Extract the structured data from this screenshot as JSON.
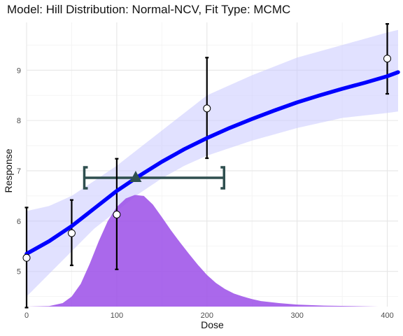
{
  "chart_data": {
    "type": "line",
    "title": "Model: Hill Distribution: Normal-NCV,  Fit Type: MCMC",
    "xlabel": "Dose",
    "ylabel": "Response",
    "xlim": [
      0,
      412
    ],
    "ylim": [
      4.3,
      9.95
    ],
    "x_ticks": [
      0,
      100,
      200,
      300,
      400
    ],
    "y_ticks": [
      5,
      6,
      7,
      8,
      9
    ],
    "grid": true,
    "colors": {
      "fit_line": "#0000ff",
      "confidence_band": "#c8c8ff",
      "density": "#9b4ee8",
      "bmd_interval": "#2f4f4f",
      "error_bar": "#000000"
    },
    "fit_curve": {
      "x": [
        0,
        25,
        50,
        75,
        100,
        125,
        150,
        175,
        200,
        225,
        250,
        275,
        300,
        325,
        350,
        375,
        400,
        412
      ],
      "y": [
        5.35,
        5.6,
        5.9,
        6.25,
        6.6,
        6.9,
        7.18,
        7.43,
        7.65,
        7.85,
        8.03,
        8.2,
        8.36,
        8.5,
        8.63,
        8.75,
        8.88,
        8.96
      ]
    },
    "confidence_band": {
      "x": [
        0,
        25,
        50,
        75,
        100,
        125,
        150,
        175,
        200,
        250,
        300,
        350,
        400,
        412
      ],
      "lower": [
        4.5,
        4.95,
        5.4,
        5.85,
        6.2,
        6.55,
        6.85,
        7.1,
        7.3,
        7.6,
        7.85,
        8.05,
        8.15,
        8.18
      ],
      "upper": [
        6.2,
        6.3,
        6.5,
        6.8,
        7.1,
        7.45,
        7.8,
        8.15,
        8.5,
        8.9,
        9.25,
        9.5,
        9.75,
        9.8
      ]
    },
    "observed": {
      "x": [
        0,
        50,
        100,
        200,
        400
      ],
      "mean": [
        5.27,
        5.76,
        6.13,
        8.24,
        9.23
      ],
      "lower": [
        4.28,
        5.12,
        5.04,
        7.25,
        8.53
      ],
      "upper": [
        6.27,
        6.42,
        7.24,
        9.25,
        9.92
      ]
    },
    "bmd": {
      "x": 121,
      "y": 6.86,
      "bmdl": 64,
      "bmdu": 219
    },
    "density": {
      "x": [
        0,
        25,
        40,
        50,
        60,
        70,
        80,
        90,
        100,
        110,
        120,
        130,
        140,
        150,
        160,
        170,
        180,
        190,
        200,
        210,
        220,
        230,
        240,
        250,
        260,
        280,
        300,
        330,
        360,
        390,
        412
      ],
      "y": [
        4.3,
        4.31,
        4.37,
        4.5,
        4.75,
        5.15,
        5.6,
        6.0,
        6.28,
        6.45,
        6.52,
        6.5,
        6.33,
        6.08,
        5.82,
        5.58,
        5.35,
        5.13,
        4.93,
        4.77,
        4.65,
        4.56,
        4.5,
        4.45,
        4.41,
        4.37,
        4.34,
        4.32,
        4.31,
        4.3,
        4.3
      ]
    }
  }
}
